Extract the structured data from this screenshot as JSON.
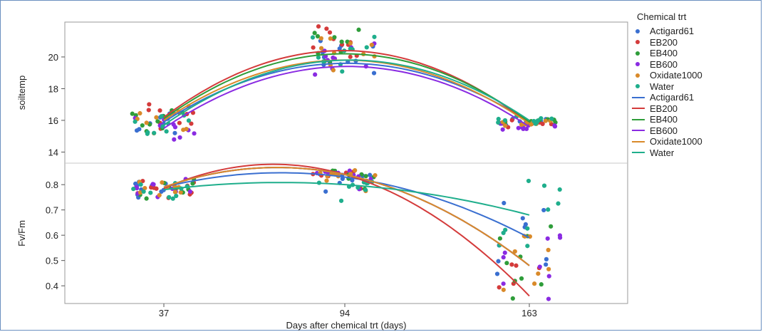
{
  "chart_data": {
    "type": "scatter",
    "x_axis": {
      "label": "Days after chemical trt (days)",
      "categories": [
        "37",
        "94",
        "163"
      ]
    },
    "legend": {
      "title": "Chemical trt",
      "placement": "right",
      "points": [
        "Actigard61",
        "EB200",
        "EB400",
        "EB600",
        "Oxidate1000",
        "Water"
      ],
      "lines": [
        "Actigard61",
        "EB200",
        "EB400",
        "EB600",
        "Oxidate1000",
        "Water"
      ]
    },
    "colors": {
      "Actigard61": "#3a6fd0",
      "EB200": "#d43b3b",
      "EB400": "#2f9d3a",
      "EB600": "#8a2be2",
      "Oxidate1000": "#d98a2a",
      "Water": "#1fae8c"
    },
    "panels": [
      {
        "ylabel": "soiltemp",
        "ylim": [
          13.3,
          22.2
        ],
        "yticks": [
          14,
          16,
          18,
          20
        ],
        "fits": [
          {
            "name": "Actigard61",
            "values": [
              15.9,
              19.6,
              15.9
            ]
          },
          {
            "name": "EB200",
            "values": [
              16.2,
              20.4,
              15.8
            ]
          },
          {
            "name": "EB400",
            "values": [
              16.1,
              20.2,
              15.9
            ]
          },
          {
            "name": "EB600",
            "values": [
              15.5,
              19.4,
              15.6
            ]
          },
          {
            "name": "Oxidate1000",
            "values": [
              16.0,
              19.8,
              15.8
            ]
          },
          {
            "name": "Water",
            "values": [
              15.7,
              19.8,
              16.0
            ]
          }
        ],
        "points": {
          "spread": [
            0.7,
            0.9,
            0.3
          ],
          "offsets": [
            [
              0.5,
              -0.5,
              0.4,
              -1.0,
              0.8,
              -0.3,
              1.0,
              0.0,
              -0.8,
              0.3
            ],
            [
              0.7,
              0.9,
              1.6,
              -0.5,
              1.0,
              0.3,
              -0.4,
              1.4,
              0.2,
              0.6
            ],
            [
              0.2,
              -0.4,
              0.4,
              -0.2,
              0.0,
              0.5,
              -0.5,
              0.3,
              -0.3,
              0.1
            ]
          ]
        }
      },
      {
        "ylabel": "Fv/Fm",
        "ylim": [
          0.33,
          0.885
        ],
        "yticks": [
          0.4,
          0.5,
          0.6,
          0.7,
          0.8
        ],
        "fits": [
          {
            "name": "Actigard61",
            "values": [
              0.79,
              0.83,
              0.59
            ]
          },
          {
            "name": "EB200",
            "values": [
              0.785,
              0.84,
              0.36
            ]
          },
          {
            "name": "EB400",
            "values": [
              0.79,
              0.84,
              0.48
            ]
          },
          {
            "name": "EB600",
            "values": [
              0.79,
              0.84,
              0.48
            ]
          },
          {
            "name": "Oxidate1000",
            "values": [
              0.79,
              0.84,
              0.48
            ]
          },
          {
            "name": "Water",
            "values": [
              0.78,
              0.8,
              0.68
            ]
          }
        ],
        "points": {
          "spread": [
            0.03,
            0.02,
            0.1
          ],
          "offsets": [
            [
              0.6,
              -0.4,
              0.2,
              -0.9,
              0.4,
              -0.2,
              0.8,
              -1.3,
              0.0,
              -0.6
            ],
            [
              0.3,
              0.5,
              -0.2,
              0.4,
              -0.6,
              0.2,
              0.6,
              -1.0,
              0.1,
              -3.0
            ],
            [
              1.4,
              -0.8,
              0.9,
              -1.4,
              1.2,
              -0.3,
              0.5,
              -1.1,
              0.3,
              -0.6
            ]
          ]
        }
      }
    ]
  }
}
